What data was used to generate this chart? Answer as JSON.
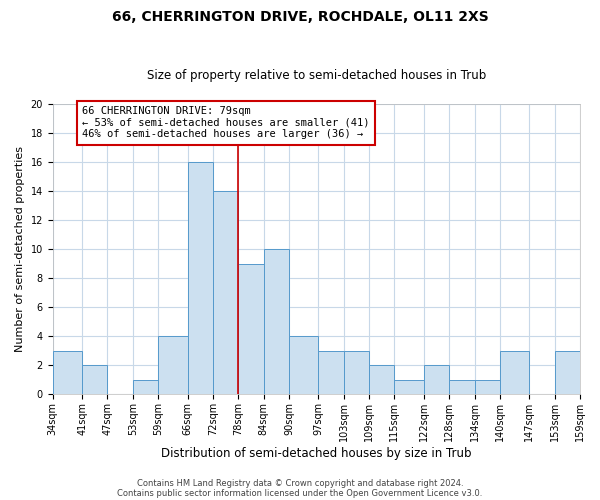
{
  "title": "66, CHERRINGTON DRIVE, ROCHDALE, OL11 2XS",
  "subtitle": "Size of property relative to semi-detached houses in Trub",
  "xlabel": "Distribution of semi-detached houses by size in Trub",
  "ylabel": "Number of semi-detached properties",
  "footnote1": "Contains HM Land Registry data © Crown copyright and database right 2024.",
  "footnote2": "Contains public sector information licensed under the Open Government Licence v3.0.",
  "bins": [
    34,
    41,
    47,
    53,
    59,
    66,
    72,
    78,
    84,
    90,
    97,
    103,
    109,
    115,
    122,
    128,
    134,
    140,
    147,
    153,
    159
  ],
  "bin_labels": [
    "34sqm",
    "41sqm",
    "47sqm",
    "53sqm",
    "59sqm",
    "66sqm",
    "72sqm",
    "78sqm",
    "84sqm",
    "90sqm",
    "97sqm",
    "103sqm",
    "109sqm",
    "115sqm",
    "122sqm",
    "128sqm",
    "134sqm",
    "140sqm",
    "147sqm",
    "153sqm",
    "159sqm"
  ],
  "counts": [
    3,
    2,
    0,
    1,
    4,
    16,
    14,
    9,
    10,
    4,
    3,
    3,
    2,
    1,
    2,
    1,
    1,
    3,
    0,
    3
  ],
  "ylim": [
    0,
    20
  ],
  "yticks": [
    0,
    2,
    4,
    6,
    8,
    10,
    12,
    14,
    16,
    18,
    20
  ],
  "bar_color": "#cce0f0",
  "bar_edge_color": "#5599cc",
  "vline_x": 78,
  "vline_color": "#cc0000",
  "annotation_title": "66 CHERRINGTON DRIVE: 79sqm",
  "annotation_line1": "← 53% of semi-detached houses are smaller (41)",
  "annotation_line2": "46% of semi-detached houses are larger (36) →",
  "annotation_box_color": "#cc0000",
  "background_color": "#ffffff",
  "grid_color": "#c8d8e8",
  "title_fontsize": 10,
  "subtitle_fontsize": 8.5,
  "ylabel_fontsize": 8,
  "xlabel_fontsize": 8.5,
  "tick_fontsize": 7,
  "annot_fontsize": 7.5,
  "footnote_fontsize": 6
}
